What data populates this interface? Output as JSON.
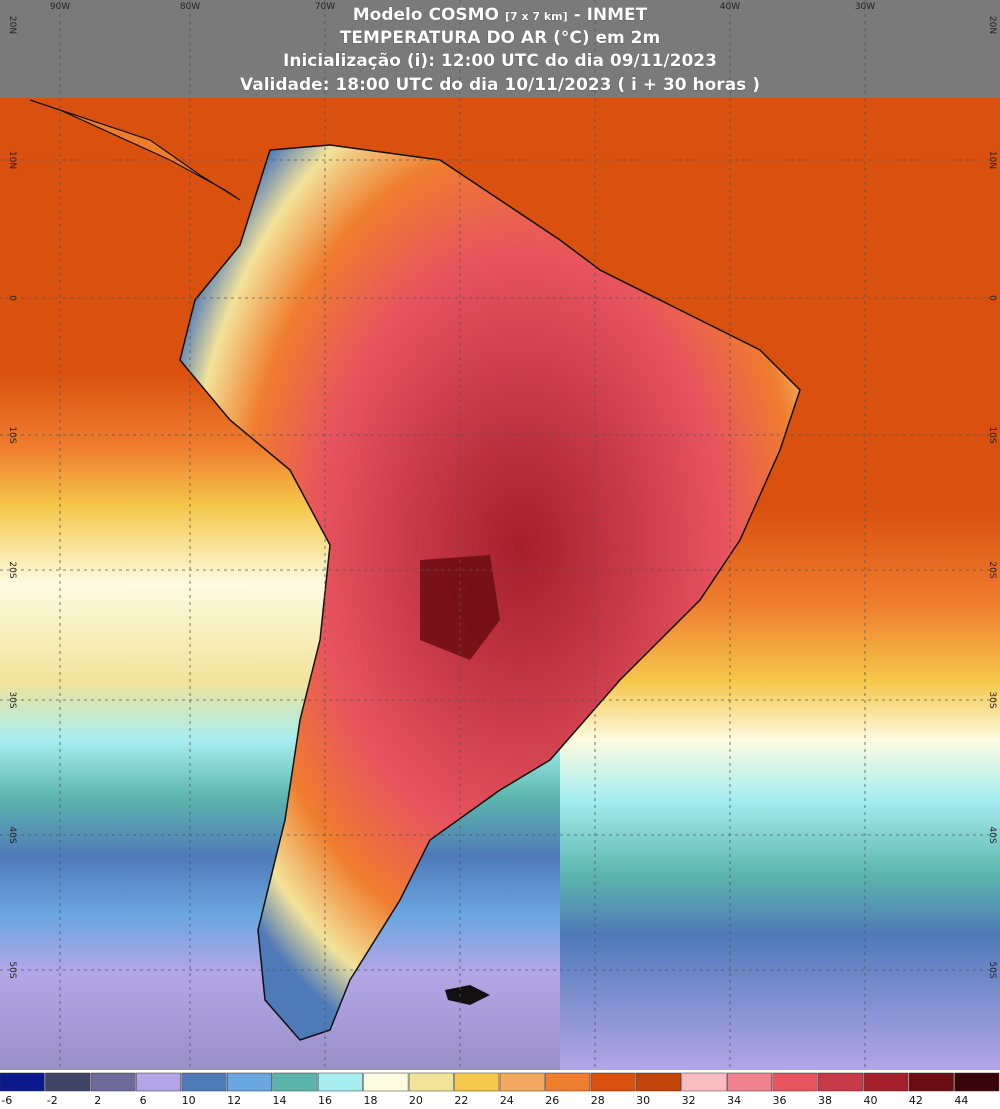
{
  "header": {
    "model": "Modelo COSMO",
    "resolution": "[7 x 7 km]",
    "source": "- INMET",
    "variable": "TEMPERATURA DO AR (°C) em 2m",
    "init": "Inicialização (i): 12:00 UTC do dia 09/11/2023",
    "valid": "Validade: 18:00 UTC do dia 10/11/2023 ( i + 30 horas )"
  },
  "graticule": {
    "lon": [
      "90W",
      "80W",
      "70W",
      "40W",
      "30W"
    ],
    "lat": [
      "20N",
      "10N",
      "0",
      "10S",
      "20S",
      "30S",
      "40S",
      "50S"
    ]
  },
  "colorbar": [
    {
      "label": -6,
      "color": "#0a1a8c"
    },
    {
      "label": -2,
      "color": "#3d4466"
    },
    {
      "label": 2,
      "color": "#6e6a99"
    },
    {
      "label": 6,
      "color": "#b3a6e8"
    },
    {
      "label": 10,
      "color": "#4f7ab8"
    },
    {
      "label": 12,
      "color": "#6aa6e0"
    },
    {
      "label": 14,
      "color": "#5cb5ad"
    },
    {
      "label": 16,
      "color": "#a8eef0"
    },
    {
      "label": 18,
      "color": "#fdfbe0"
    },
    {
      "label": 20,
      "color": "#f2e39a"
    },
    {
      "label": 22,
      "color": "#f5c74a"
    },
    {
      "label": 24,
      "color": "#f4a860"
    },
    {
      "label": 26,
      "color": "#ef7d2e"
    },
    {
      "label": 28,
      "color": "#d9500f"
    },
    {
      "label": 30,
      "color": "#c2440a"
    },
    {
      "label": 32,
      "color": "#f9bcc0"
    },
    {
      "label": 34,
      "color": "#f0828f"
    },
    {
      "label": 36,
      "color": "#e8545e"
    },
    {
      "label": 38,
      "color": "#c93a48"
    },
    {
      "label": 40,
      "color": "#a51f2b"
    },
    {
      "label": 42,
      "color": "#6b0c12"
    },
    {
      "label": 44,
      "color": "#3a0508"
    }
  ]
}
